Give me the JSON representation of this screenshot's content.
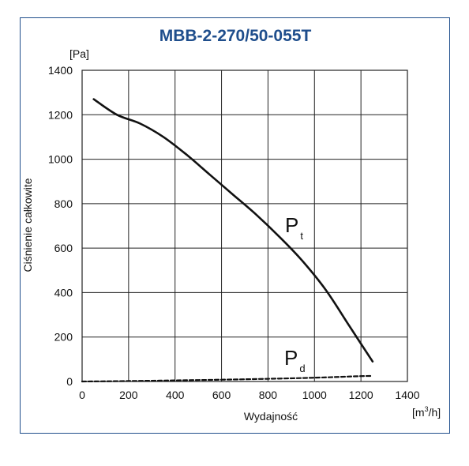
{
  "chart_data": {
    "type": "line",
    "title": "MBB-2-270/50-055T",
    "ylabel": "Ciśnienie całkowite",
    "xlabel": "Wydajność",
    "yunit": "[Pa]",
    "xunit_base": "[m",
    "xunit_exp": "3",
    "xunit_tail": "/h]",
    "xlim": [
      0,
      1400
    ],
    "ylim": [
      0,
      1400
    ],
    "xticks": [
      "0",
      "200",
      "400",
      "600",
      "800",
      "1000",
      "1200",
      "1400"
    ],
    "yticks": [
      "0",
      "200",
      "400",
      "600",
      "800",
      "1000",
      "1200",
      "1400"
    ],
    "grid": true,
    "series": [
      {
        "name": "Pt",
        "label_main": "P",
        "label_sub": "t",
        "style": "solid",
        "x": [
          50,
          150,
          250,
          350,
          450,
          550,
          650,
          750,
          850,
          950,
          1050,
          1150,
          1250
        ],
        "y": [
          1270,
          1200,
          1160,
          1100,
          1020,
          930,
          840,
          750,
          650,
          540,
          410,
          250,
          90
        ]
      },
      {
        "name": "Pd",
        "label_main": "P",
        "label_sub": "d",
        "style": "dashed",
        "x": [
          0,
          200,
          400,
          600,
          800,
          1000,
          1200,
          1250
        ],
        "y": [
          0,
          2,
          5,
          8,
          12,
          17,
          24,
          25
        ]
      }
    ]
  }
}
